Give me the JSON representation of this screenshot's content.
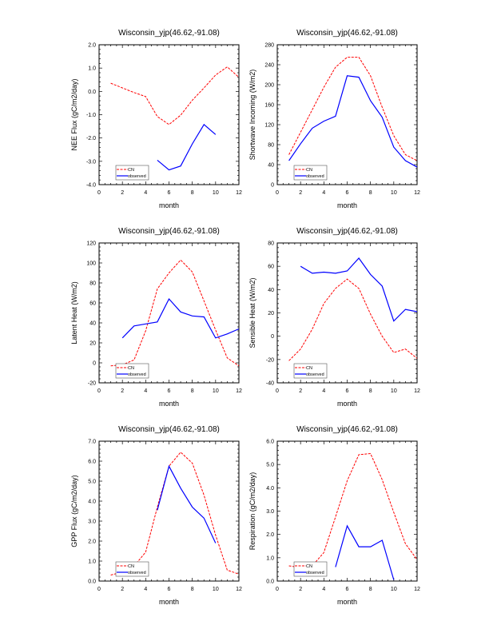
{
  "colors": {
    "cn": "#ff0000",
    "observed": "#0000ff",
    "axis": "#000000"
  },
  "chart_data": [
    {
      "type": "line",
      "title": "Wisconsin_yjp(46.62,-91.08)",
      "xlabel": "month",
      "ylabel": "NEE Flux (gC/m2/day)",
      "xlim": [
        0,
        12
      ],
      "ylim": [
        -4.0,
        2.0
      ],
      "xticks": [
        0,
        2,
        4,
        6,
        8,
        10,
        12
      ],
      "yticks": [
        -4.0,
        -3.0,
        -2.0,
        -1.0,
        0.0,
        1.0,
        2.0
      ],
      "ytick_labels": [
        "-4.0",
        "-3.0",
        "-2.0",
        "-1.0",
        "0.0",
        "1.0",
        "2.0"
      ],
      "legend": {
        "position": "bottom-left",
        "entries": [
          "CN",
          "observed"
        ]
      },
      "series": [
        {
          "name": "CN",
          "style": "dashed",
          "x": [
            1,
            2,
            3,
            4,
            5,
            6,
            7,
            8,
            9,
            10,
            11,
            12
          ],
          "values": [
            0.35,
            0.15,
            -0.05,
            -0.22,
            -1.08,
            -1.42,
            -1.02,
            -0.38,
            0.15,
            0.7,
            1.05,
            0.6
          ]
        },
        {
          "name": "observed",
          "style": "solid",
          "x": [
            5,
            6,
            7,
            8,
            9,
            10
          ],
          "values": [
            -2.95,
            -3.37,
            -3.2,
            -2.25,
            -1.42,
            -1.85
          ]
        }
      ]
    },
    {
      "type": "line",
      "title": "Wisconsin_yjp(46.62,-91.08)",
      "xlabel": "month",
      "ylabel": "Shortwave Incoming (W/m2)",
      "xlim": [
        0,
        12
      ],
      "ylim": [
        0,
        280
      ],
      "xticks": [
        0,
        2,
        4,
        6,
        8,
        10,
        12
      ],
      "yticks": [
        0,
        40,
        80,
        120,
        160,
        200,
        240,
        280
      ],
      "ytick_labels": [
        "0",
        "40",
        "80",
        "120",
        "160",
        "200",
        "240",
        "280"
      ],
      "legend": {
        "position": "bottom-left",
        "entries": [
          "CN",
          "observed"
        ]
      },
      "series": [
        {
          "name": "CN",
          "style": "dashed",
          "x": [
            1,
            2,
            3,
            4,
            5,
            6,
            7,
            8,
            9,
            10,
            11,
            12
          ],
          "values": [
            60,
            105,
            150,
            195,
            235,
            255,
            255,
            218,
            155,
            98,
            60,
            48
          ]
        },
        {
          "name": "observed",
          "style": "solid",
          "x": [
            1,
            2,
            3,
            4,
            5,
            6,
            7,
            8,
            9,
            10,
            11,
            12
          ],
          "values": [
            48,
            82,
            113,
            127,
            137,
            218,
            215,
            168,
            135,
            75,
            48,
            35
          ]
        }
      ]
    },
    {
      "type": "line",
      "title": "Wisconsin_yjp(46.62,-91.08)",
      "xlabel": "month",
      "ylabel": "Latent Heat (W/m2)",
      "xlim": [
        0,
        12
      ],
      "ylim": [
        -20,
        120
      ],
      "xticks": [
        0,
        2,
        4,
        6,
        8,
        10,
        12
      ],
      "yticks": [
        -20,
        0,
        20,
        40,
        60,
        80,
        100,
        120
      ],
      "ytick_labels": [
        "-20",
        "0",
        "20",
        "40",
        "60",
        "80",
        "100",
        "120"
      ],
      "legend": {
        "position": "bottom-left",
        "entries": [
          "CN",
          "observed"
        ]
      },
      "series": [
        {
          "name": "CN",
          "style": "dashed",
          "x": [
            1,
            2,
            3,
            4,
            5,
            6,
            7,
            8,
            9,
            10,
            11,
            12
          ],
          "values": [
            -3,
            -2,
            3,
            32,
            74,
            90,
            103,
            91,
            62,
            33,
            5,
            -3
          ]
        },
        {
          "name": "observed",
          "style": "solid",
          "x": [
            2,
            3,
            4,
            5,
            6,
            7,
            8,
            9,
            10,
            11,
            12
          ],
          "values": [
            25,
            37,
            39,
            41,
            64,
            51,
            47,
            46,
            25,
            29,
            34
          ]
        }
      ]
    },
    {
      "type": "line",
      "title": "Wisconsin_yjp(46.62,-91.08)",
      "xlabel": "month",
      "ylabel": "Sensible Heat (W/m2)",
      "xlim": [
        0,
        12
      ],
      "ylim": [
        -40,
        80
      ],
      "xticks": [
        0,
        2,
        4,
        6,
        8,
        10,
        12
      ],
      "yticks": [
        -40,
        -20,
        0,
        20,
        40,
        60,
        80
      ],
      "ytick_labels": [
        "-40",
        "-20",
        "0",
        "20",
        "40",
        "60",
        "80"
      ],
      "legend": {
        "position": "bottom-left",
        "entries": [
          "CN",
          "observed"
        ]
      },
      "series": [
        {
          "name": "CN",
          "style": "dashed",
          "x": [
            1,
            2,
            3,
            4,
            5,
            6,
            7,
            8,
            9,
            10,
            11,
            12
          ],
          "values": [
            -21,
            -11,
            6,
            28,
            41,
            49,
            41,
            19,
            0,
            -14,
            -11,
            -19
          ]
        },
        {
          "name": "observed",
          "style": "solid",
          "x": [
            2,
            3,
            4,
            5,
            6,
            7,
            8,
            9,
            10,
            11,
            12
          ],
          "values": [
            60,
            54,
            55,
            54,
            56,
            67,
            53,
            43,
            13,
            23,
            21
          ]
        }
      ]
    },
    {
      "type": "line",
      "title": "Wisconsin_yjp(46.62,-91.08)",
      "xlabel": "month",
      "ylabel": "GPP Flux (gC/m2/day)",
      "xlim": [
        0,
        12
      ],
      "ylim": [
        0.0,
        7.0
      ],
      "xticks": [
        0,
        2,
        4,
        6,
        8,
        10,
        12
      ],
      "yticks": [
        0.0,
        1.0,
        2.0,
        3.0,
        4.0,
        5.0,
        6.0,
        7.0
      ],
      "ytick_labels": [
        "0.0",
        "1.0",
        "2.0",
        "3.0",
        "4.0",
        "5.0",
        "6.0",
        "7.0"
      ],
      "legend": {
        "position": "bottom-left",
        "entries": [
          "CN",
          "observed"
        ]
      },
      "series": [
        {
          "name": "CN",
          "style": "dashed",
          "x": [
            1,
            2,
            3,
            4,
            5,
            6,
            7,
            8,
            9,
            10,
            11,
            12
          ],
          "values": [
            0.3,
            0.45,
            0.75,
            1.45,
            3.7,
            5.75,
            6.45,
            5.9,
            4.3,
            2.3,
            0.55,
            0.35
          ]
        },
        {
          "name": "observed",
          "style": "solid",
          "x": [
            5,
            6,
            7,
            8,
            9,
            10
          ],
          "values": [
            3.55,
            5.75,
            4.65,
            3.7,
            3.15,
            1.9
          ]
        }
      ]
    },
    {
      "type": "line",
      "title": "Wisconsin_yjp(46.62,-91.08)",
      "xlabel": "month",
      "ylabel": "Respiration (gC/m2/day)",
      "xlim": [
        0,
        12
      ],
      "ylim": [
        0.0,
        6.0
      ],
      "xticks": [
        0,
        2,
        4,
        6,
        8,
        10,
        12
      ],
      "yticks": [
        0.0,
        1.0,
        2.0,
        3.0,
        4.0,
        5.0,
        6.0
      ],
      "ytick_labels": [
        "0.0",
        "1.0",
        "2.0",
        "3.0",
        "4.0",
        "5.0",
        "6.0"
      ],
      "legend": {
        "position": "bottom-left",
        "entries": [
          "CN",
          "observed"
        ]
      },
      "series": [
        {
          "name": "CN",
          "style": "dashed",
          "x": [
            1,
            2,
            3,
            4,
            5,
            6,
            7,
            8,
            9,
            10,
            11,
            12
          ],
          "values": [
            0.65,
            0.58,
            0.65,
            1.22,
            2.75,
            4.3,
            5.42,
            5.47,
            4.35,
            2.95,
            1.6,
            0.92
          ]
        },
        {
          "name": "observed",
          "style": "solid",
          "x": [
            5,
            6,
            7,
            8,
            9,
            10
          ],
          "values": [
            0.6,
            2.37,
            1.47,
            1.47,
            1.75,
            0.05
          ]
        }
      ]
    }
  ]
}
